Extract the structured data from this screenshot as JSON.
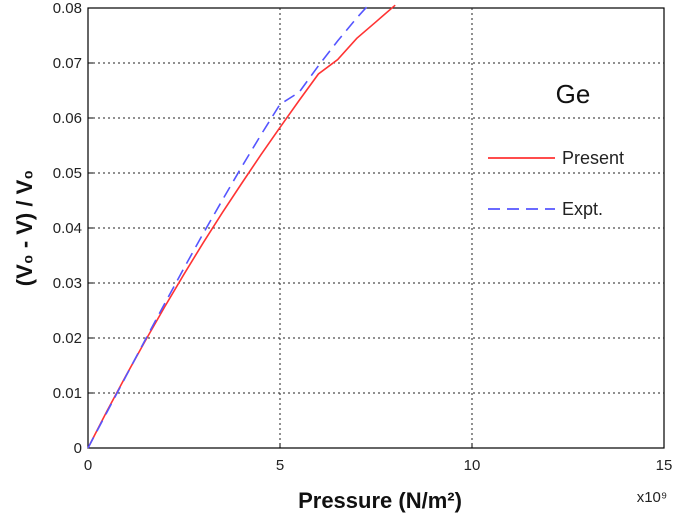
{
  "chart_data": {
    "type": "line",
    "xlabel": "Pressure (N/m²)",
    "ylabel": "(V₀ - V) / V₀",
    "x_multiplier": "x10⁹",
    "xlim": [
      0,
      15
    ],
    "ylim": [
      0,
      0.08
    ],
    "x_ticks": [
      "0",
      "5",
      "10",
      "15"
    ],
    "y_ticks": [
      "0",
      "0.01",
      "0.02",
      "0.03",
      "0.04",
      "0.05",
      "0.06",
      "0.07",
      "0.08"
    ],
    "grid": true,
    "legend_position": "right",
    "annotation": "Ge",
    "series": [
      {
        "name": "Present",
        "color": "#ff3333",
        "dash": "solid",
        "x": [
          0,
          0.5,
          1,
          1.5,
          2,
          2.5,
          3,
          3.5,
          4,
          4.5,
          5,
          5.5,
          6,
          6.5,
          7,
          7.5,
          8
        ],
        "y": [
          0,
          0.0068,
          0.0133,
          0.0196,
          0.0257,
          0.0316,
          0.0373,
          0.0428,
          0.0481,
          0.0533,
          0.0583,
          0.0632,
          0.068,
          0.0706,
          0.0745,
          0.0775,
          0.0805
        ]
      },
      {
        "name": "Expt.",
        "color": "#5555ff",
        "dash": "dashed",
        "x": [
          0,
          0.5,
          1,
          1.5,
          2,
          2.5,
          3,
          3.5,
          4,
          4.5,
          5,
          5.5,
          6,
          6.5,
          7,
          7.3
        ],
        "y": [
          0,
          0.0066,
          0.0132,
          0.0198,
          0.0263,
          0.0327,
          0.039,
          0.0451,
          0.0511,
          0.0569,
          0.0625,
          0.0647,
          0.0695,
          0.074,
          0.0782,
          0.0805
        ]
      }
    ]
  }
}
